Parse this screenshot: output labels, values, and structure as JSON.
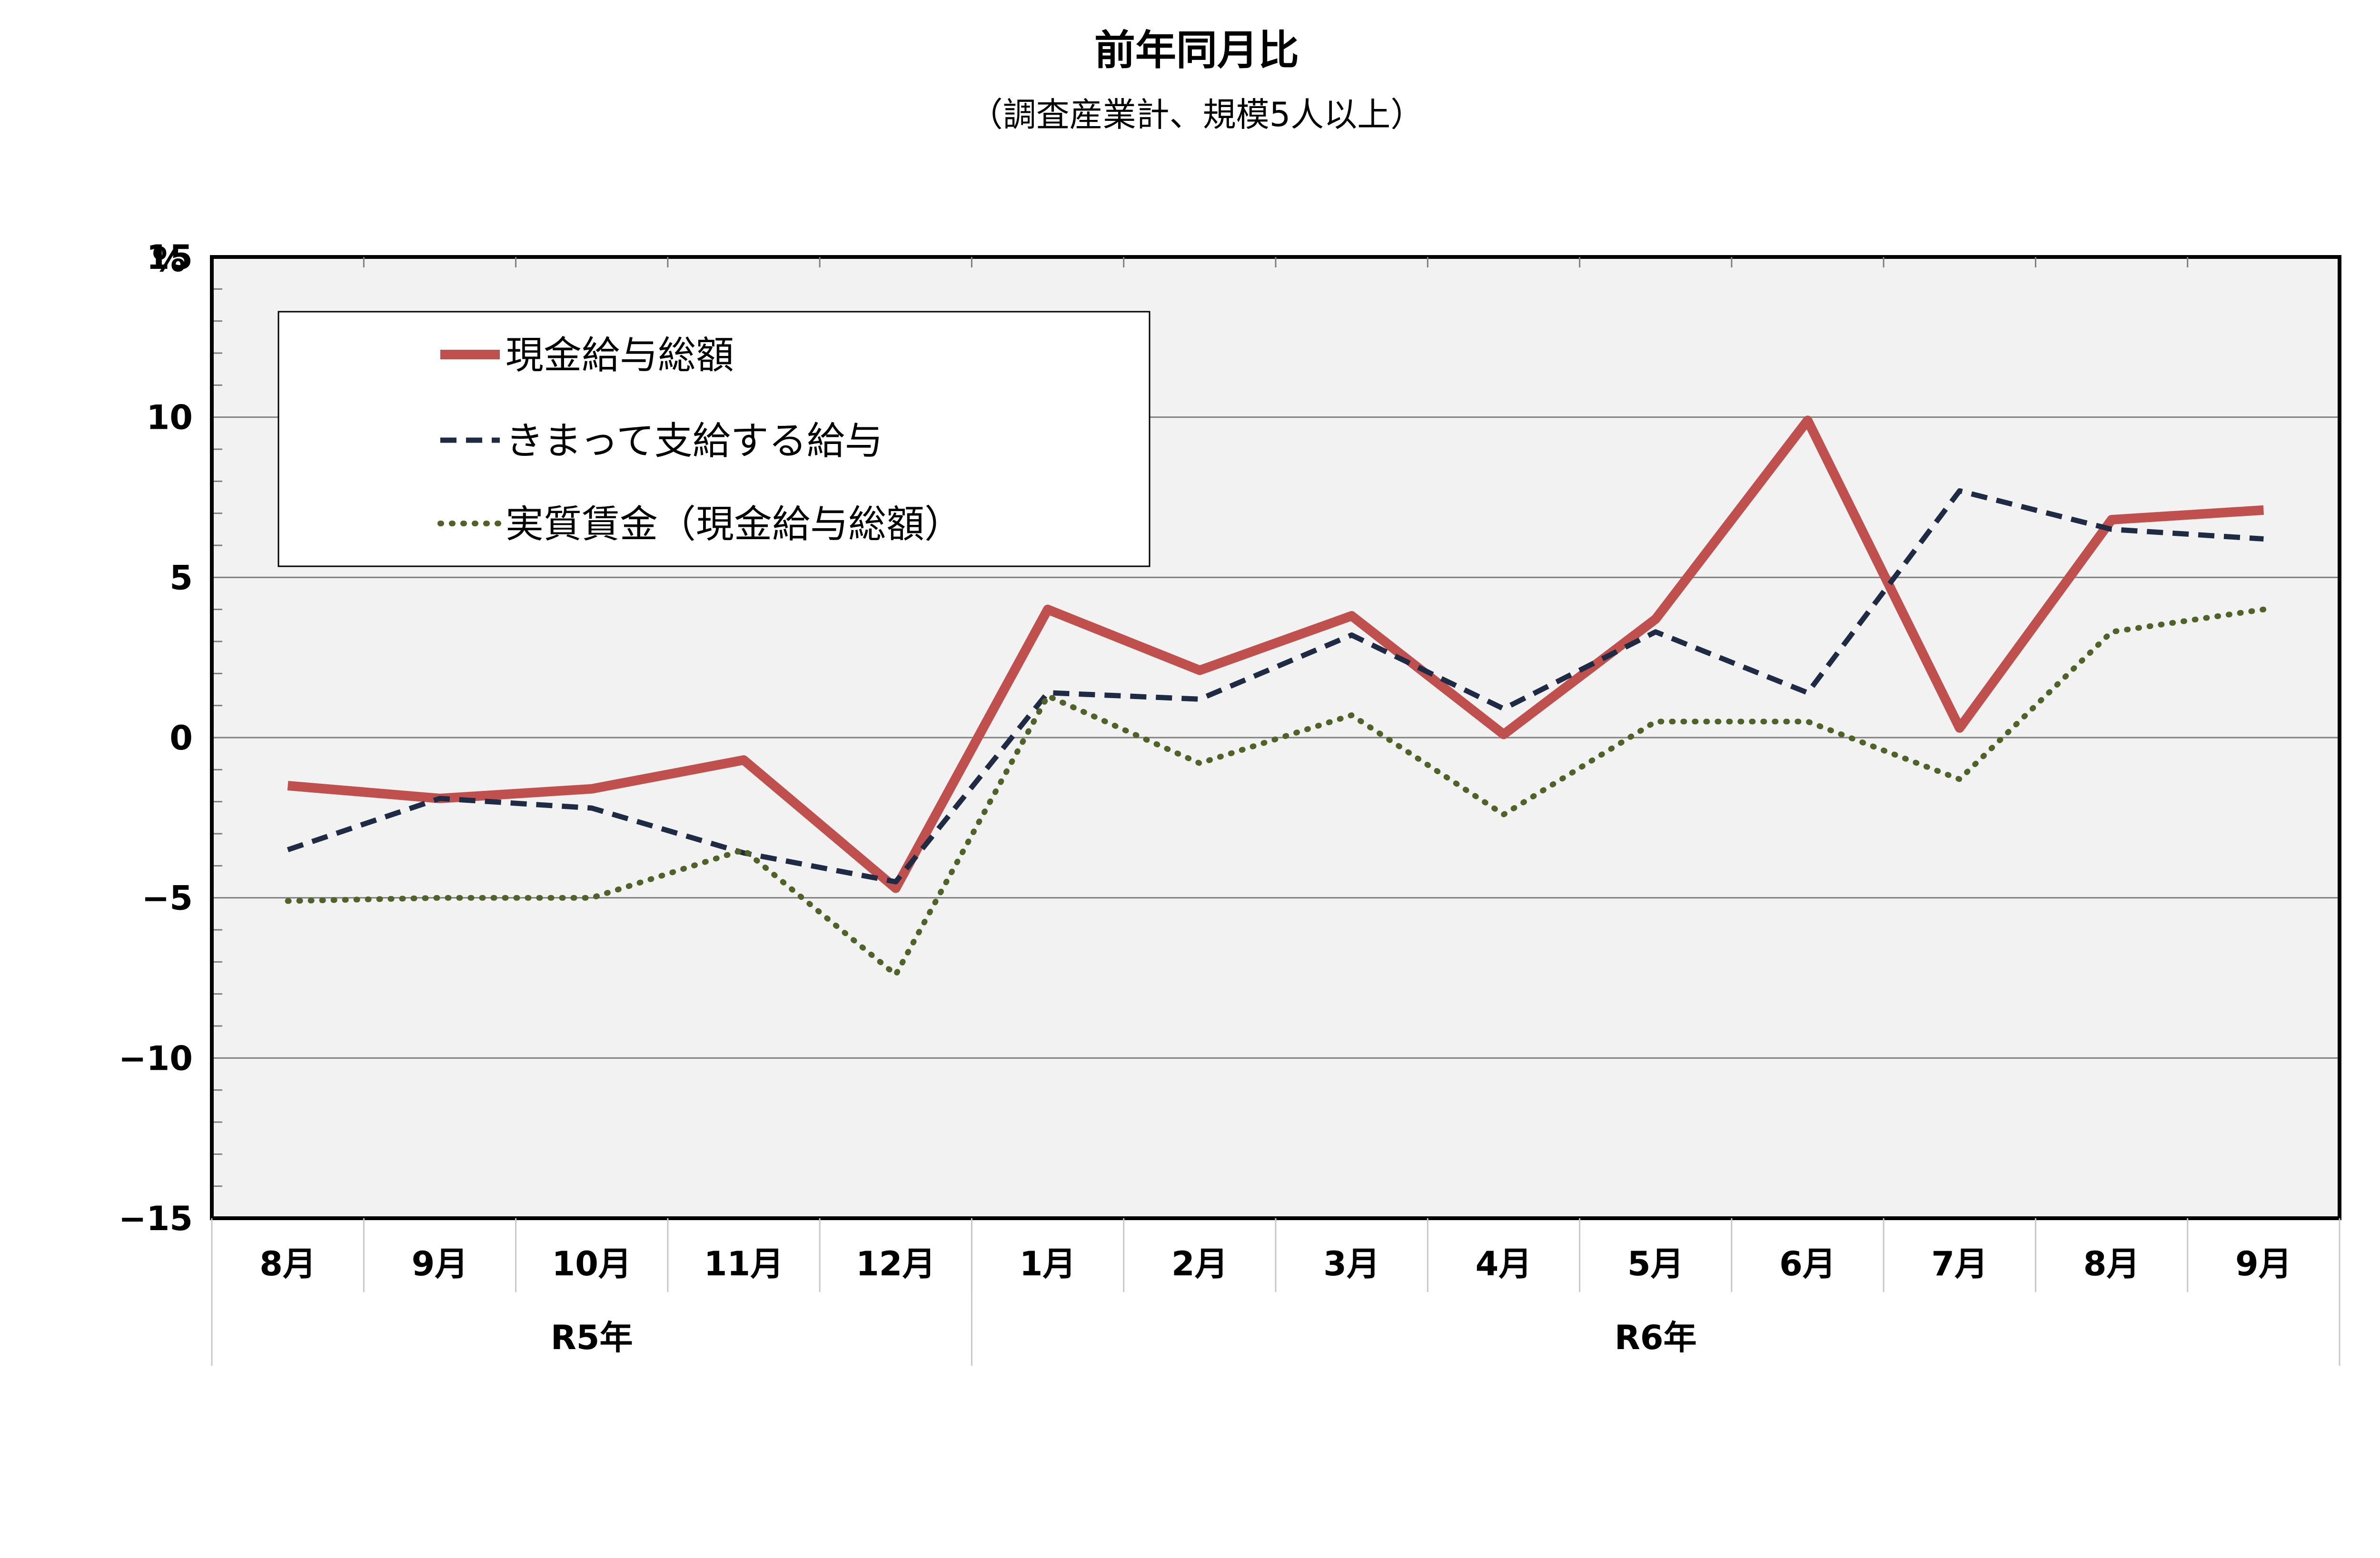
{
  "chart_data": {
    "type": "line",
    "title": "前年同月比",
    "subtitle": "（調査産業計、規模5人以上）",
    "ylabel": "%",
    "ylim": [
      -15,
      15
    ],
    "yticks": [
      -15,
      -10,
      -5,
      0,
      5,
      10,
      15
    ],
    "ytick_labels": [
      "−15",
      "−10",
      "−5",
      "0",
      "5",
      "10",
      "15"
    ],
    "grid": true,
    "legend_position": "top-left",
    "categories": [
      "8月",
      "9月",
      "10月",
      "11月",
      "12月",
      "1月",
      "2月",
      "3月",
      "4月",
      "5月",
      "6月",
      "7月",
      "8月",
      "9月"
    ],
    "groups": [
      {
        "label": "R5年",
        "count": 5
      },
      {
        "label": "R6年",
        "count": 9
      }
    ],
    "series": [
      {
        "name": "現金給与総額",
        "style": "solid",
        "color": "#C0504D",
        "values": [
          -1.5,
          -1.9,
          -1.6,
          -0.7,
          -4.7,
          4.0,
          2.1,
          3.8,
          0.1,
          3.7,
          9.9,
          0.3,
          6.8,
          7.1
        ]
      },
      {
        "name": "きまって支給する給与",
        "style": "dashed",
        "color": "#1F2A44",
        "values": [
          -3.5,
          -1.9,
          -2.2,
          -3.6,
          -4.5,
          1.4,
          1.2,
          3.2,
          0.9,
          3.3,
          1.4,
          7.7,
          6.5,
          6.2
        ]
      },
      {
        "name": "実質賃金（現金給与総額）",
        "style": "dotted",
        "color": "#4F6228",
        "values": [
          -5.1,
          -5.0,
          -5.0,
          -3.5,
          -7.4,
          1.3,
          -0.8,
          0.7,
          -2.4,
          0.5,
          0.5,
          -1.3,
          3.3,
          4.0
        ]
      }
    ]
  }
}
